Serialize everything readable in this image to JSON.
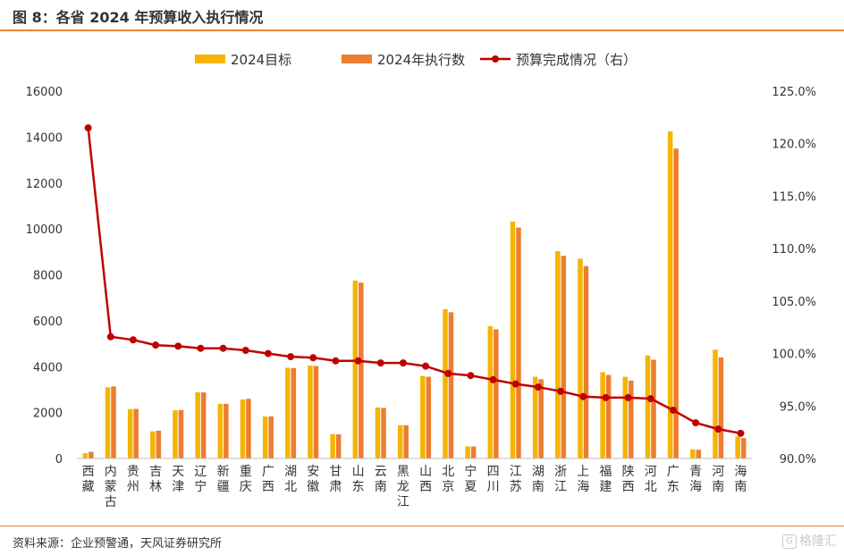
{
  "figure_title": "图 8：各省 2024 年预算收入执行情况",
  "source": "资料来源：企业预警通，天风证券研究所",
  "watermark": "格隆汇",
  "colors": {
    "target": "#F5B400",
    "actual": "#ED7D31",
    "completion": "#C00000",
    "accent_rule": "#E8872C"
  },
  "chart_data": {
    "type": "bar",
    "categories": [
      "西藏",
      "内蒙古",
      "贵州",
      "吉林",
      "天津",
      "辽宁",
      "新疆",
      "重庆",
      "广西",
      "湖北",
      "安徽",
      "甘肃",
      "山东",
      "云南",
      "黑龙江",
      "山西",
      "北京",
      "宁夏",
      "四川",
      "江苏",
      "湖南",
      "浙江",
      "上海",
      "福建",
      "陕西",
      "河北",
      "广东",
      "青海",
      "河南",
      "海南"
    ],
    "series": [
      {
        "name": "2024目标",
        "type": "bar",
        "axis": "left",
        "values": [
          230,
          3100,
          2150,
          1180,
          2100,
          2880,
          2380,
          2570,
          1830,
          3950,
          4050,
          1060,
          7750,
          2220,
          1450,
          3590,
          6500,
          530,
          5760,
          10320,
          3560,
          9030,
          8700,
          3760,
          3560,
          4490,
          14250,
          400,
          4740,
          960
        ]
      },
      {
        "name": "2024年执行数",
        "type": "bar",
        "axis": "left",
        "values": [
          290,
          3140,
          2160,
          1210,
          2110,
          2880,
          2380,
          2600,
          1830,
          3940,
          4030,
          1050,
          7660,
          2200,
          1450,
          3560,
          6370,
          520,
          5630,
          10060,
          3450,
          8830,
          8380,
          3640,
          3390,
          4300,
          13500,
          380,
          4400,
          890
        ]
      },
      {
        "name": "预算完成情况（右）",
        "type": "line",
        "axis": "right",
        "values": [
          121.5,
          101.6,
          101.3,
          100.8,
          100.7,
          100.5,
          100.5,
          100.3,
          100.0,
          99.7,
          99.6,
          99.3,
          99.3,
          99.1,
          99.1,
          98.8,
          98.1,
          97.9,
          97.5,
          97.1,
          96.8,
          96.4,
          95.9,
          95.8,
          95.8,
          95.7,
          94.6,
          93.4,
          92.8,
          92.4
        ]
      }
    ],
    "yleft": {
      "min": 0,
      "max": 16000,
      "ticks": [
        "0",
        "2000",
        "4000",
        "6000",
        "8000",
        "10000",
        "12000",
        "14000",
        "16000"
      ]
    },
    "yright": {
      "min": 90,
      "max": 125,
      "ticks": [
        "90.0%",
        "95.0%",
        "100.0%",
        "105.0%",
        "110.0%",
        "115.0%",
        "120.0%",
        "125.0%"
      ]
    },
    "grid": false,
    "legend_position": "top-center"
  }
}
